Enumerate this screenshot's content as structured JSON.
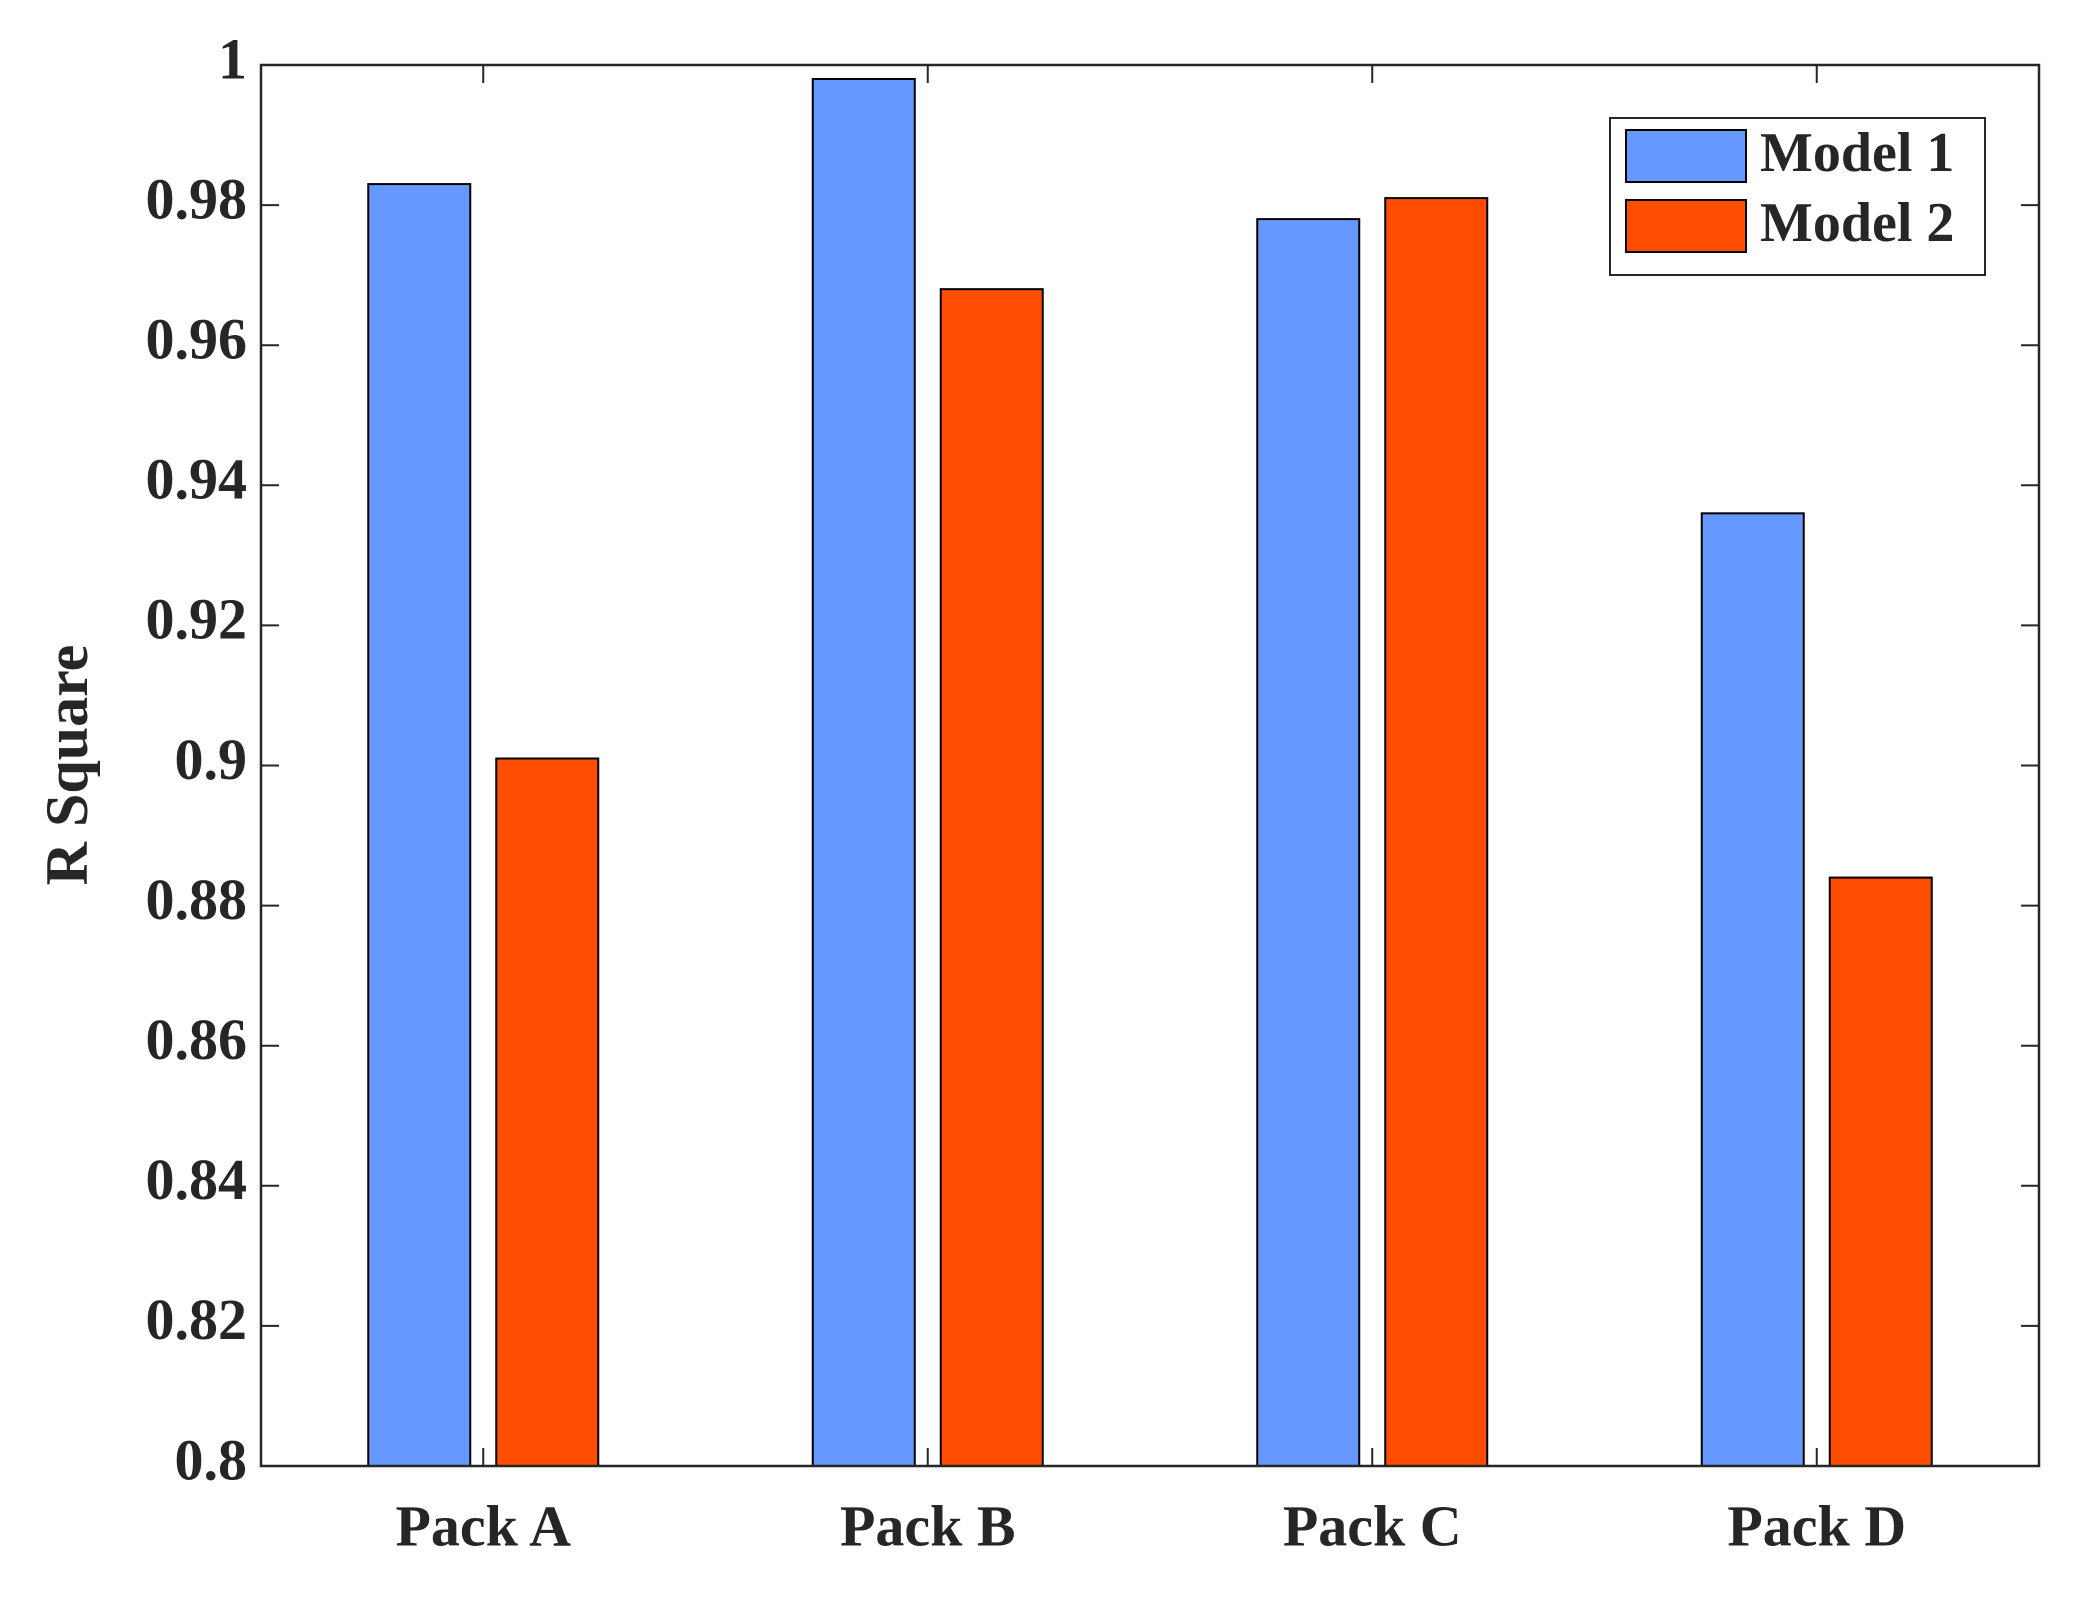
{
  "chart_data": {
    "type": "bar",
    "y_label": "R Square",
    "categories": [
      "Pack A",
      "Pack B",
      "Pack C",
      "Pack D"
    ],
    "series": [
      {
        "name": "Model 1",
        "color": "#6699ff",
        "values": [
          0.983,
          0.998,
          0.978,
          0.936
        ]
      },
      {
        "name": "Model 2",
        "color": "#ff4d00",
        "values": [
          0.901,
          0.968,
          0.981,
          0.884
        ]
      }
    ],
    "ylim": [
      0.8,
      1
    ],
    "yticks": [
      0.8,
      0.82,
      0.84,
      0.86,
      0.88,
      0.9,
      0.92,
      0.94,
      0.96,
      0.98,
      1
    ],
    "legend": "upper right"
  }
}
